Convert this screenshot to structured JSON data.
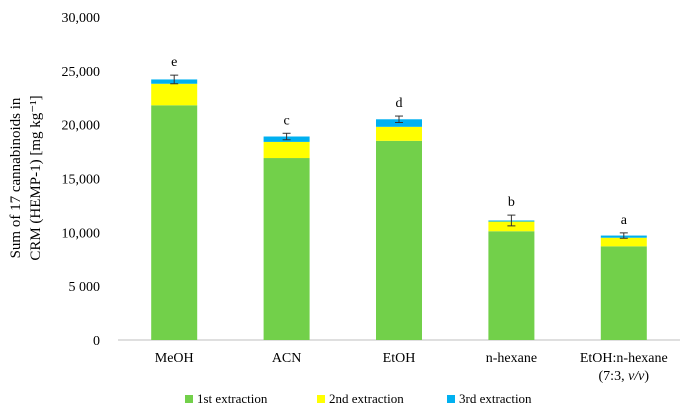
{
  "chart_data": {
    "type": "bar",
    "stacked": true,
    "title": "",
    "xlabel": "",
    "ylabel_line1": "Sum of 17 cannabinoids in",
    "ylabel_line2": "CRM (HEMP-1)   [mg kg⁻¹]",
    "ylim": [
      0,
      30000
    ],
    "yticks": [
      0,
      5000,
      10000,
      15000,
      20000,
      25000,
      30000
    ],
    "ytick_labels": [
      "0",
      "5 000",
      "10,000",
      "15,000",
      "20,000",
      "25,000",
      "30,000"
    ],
    "categories": [
      {
        "line1": "MeOH",
        "line2": ""
      },
      {
        "line1": "ACN",
        "line2": ""
      },
      {
        "line1": "EtOH",
        "line2": ""
      },
      {
        "line1": "n-hexane",
        "line2": ""
      },
      {
        "line1": "EtOH:n-hexane",
        "line2": "(7:3, v/v)"
      }
    ],
    "series": [
      {
        "name": "1st extraction",
        "color": "#72d04a",
        "values": [
          21800,
          16900,
          18500,
          10100,
          8700
        ]
      },
      {
        "name": "2nd extraction",
        "color": "#ffff00",
        "values": [
          2000,
          1500,
          1300,
          900,
          800
        ]
      },
      {
        "name": "3rd extraction",
        "color": "#00b0f0",
        "values": [
          400,
          500,
          700,
          100,
          200
        ]
      }
    ],
    "error_bars": [
      400,
      300,
      300,
      500,
      250
    ],
    "significance_letters": [
      "e",
      "c",
      "d",
      "b",
      "a"
    ],
    "legend_position": "bottom"
  }
}
